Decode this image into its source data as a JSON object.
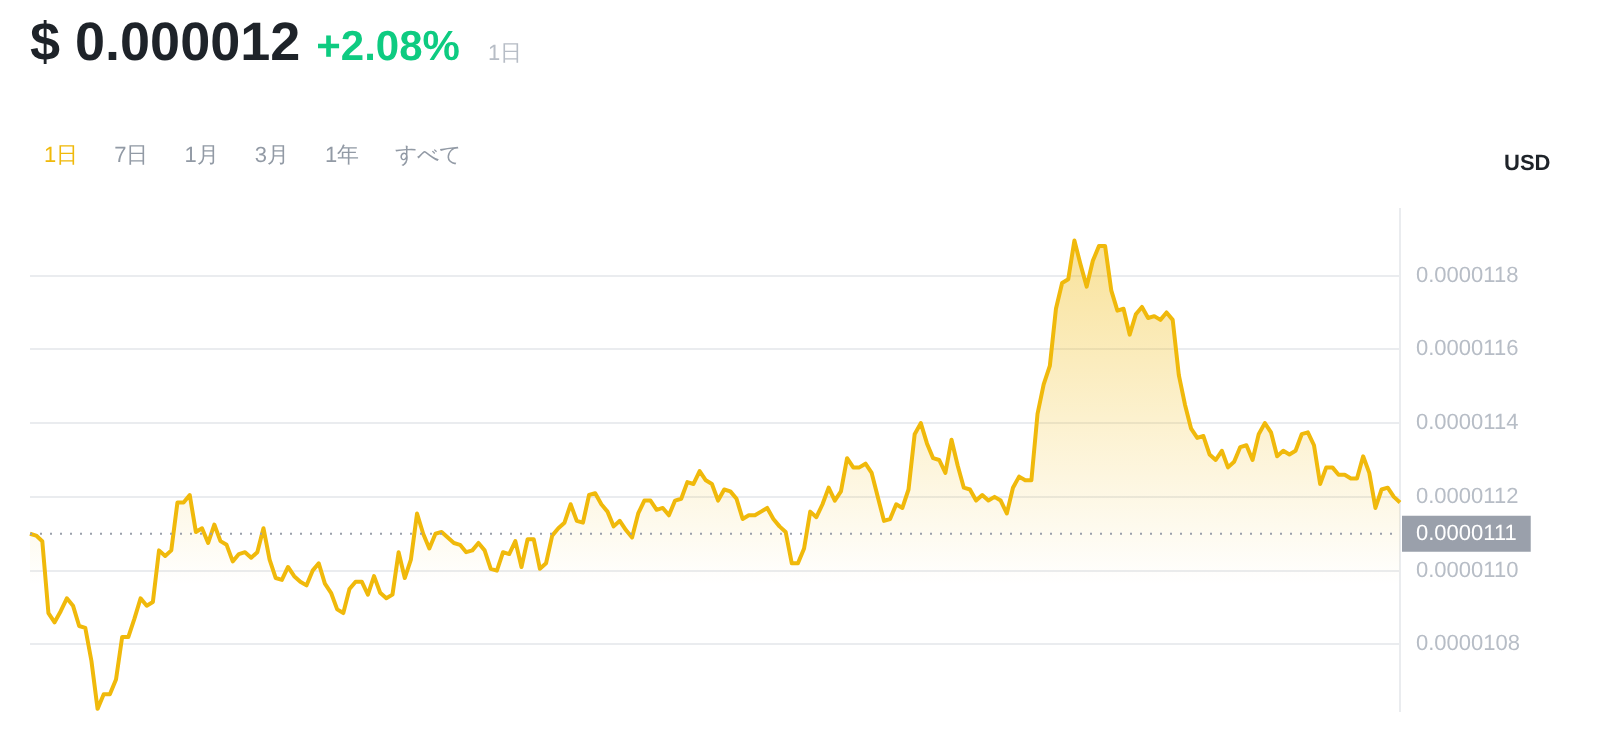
{
  "chart_data": {
    "type": "area",
    "title": "$ 0.000012",
    "subtitle": "+2.08%",
    "ylabel": "USD",
    "annotations": [
      "1日",
      "1日",
      "7日",
      "1月",
      "3月",
      "1年",
      "すべて"
    ],
    "categories": [
      null,
      null,
      null,
      null,
      null,
      null,
      null,
      null,
      null,
      null,
      null,
      null,
      null,
      null,
      null,
      null,
      null,
      null,
      null,
      null,
      null,
      null,
      null,
      null,
      null,
      null,
      null,
      null,
      null,
      null,
      null,
      null,
      null,
      null,
      null,
      null,
      null,
      null,
      null,
      null,
      null,
      null,
      null,
      null,
      null,
      null,
      null,
      null,
      null,
      null,
      null,
      null,
      null,
      null,
      null,
      null,
      null,
      null,
      null,
      null,
      null,
      null,
      null,
      null,
      null,
      null,
      null,
      null,
      null,
      null,
      null,
      null,
      null,
      null,
      null,
      null,
      null,
      null,
      null,
      null,
      null,
      null,
      null,
      null,
      null,
      null,
      null,
      null,
      null,
      null,
      null,
      null,
      null,
      null,
      null,
      null,
      null,
      null,
      null,
      null,
      null,
      null,
      null,
      null,
      null,
      null,
      null,
      null,
      null,
      null,
      null,
      null,
      null,
      null,
      null,
      null,
      null,
      null,
      null,
      null,
      null,
      null,
      null,
      null,
      null,
      null,
      null,
      null,
      null,
      null,
      null,
      null,
      null,
      null,
      null,
      null,
      null,
      null,
      null,
      null,
      null,
      null,
      null,
      null,
      null,
      null,
      null,
      null,
      null,
      null,
      null,
      null,
      null,
      null,
      null,
      null,
      null,
      null,
      null,
      null,
      null,
      null,
      null,
      null,
      null,
      null,
      null,
      null,
      null,
      null,
      null,
      null,
      null,
      null,
      null,
      null,
      null,
      null,
      null,
      null,
      null,
      null,
      null,
      null,
      null,
      null,
      null,
      null,
      null,
      null,
      null,
      null,
      null,
      null,
      null,
      null,
      null,
      null,
      null,
      null,
      null,
      null,
      null,
      null,
      null,
      null,
      null,
      null,
      null,
      null,
      null,
      null,
      null,
      null,
      null,
      null,
      null,
      null,
      null,
      null,
      null,
      null,
      null,
      null
    ],
    "series": [
      {
        "color": "#f0b90b",
        "values": [
          1.11e-05,
          1.1095e-05,
          1.108e-05,
          1.0885e-05,
          1.086e-05,
          1.089e-05,
          1.0925e-05,
          1.0905e-05,
          1.085e-05,
          1.0845e-05,
          1.0755e-05,
          1.0625e-05,
          1.0665e-05,
          1.0665e-05,
          1.0705e-05,
          1.082e-05,
          1.082e-05,
          1.087e-05,
          1.0925e-05,
          1.0905e-05,
          1.0915e-05,
          1.1055e-05,
          1.104e-05,
          1.1055e-05,
          1.1185e-05,
          1.1185e-05,
          1.1205e-05,
          1.1105e-05,
          1.1115e-05,
          1.1075e-05,
          1.1125e-05,
          1.108e-05,
          1.107e-05,
          1.1025e-05,
          1.1045e-05,
          1.105e-05,
          1.1035e-05,
          1.105e-05,
          1.1115e-05,
          1.103e-05,
          1.098e-05,
          1.0975e-05,
          1.101e-05,
          1.0985e-05,
          1.097e-05,
          1.096e-05,
          1.1e-05,
          1.102e-05,
          1.0965e-05,
          1.094e-05,
          1.0895e-05,
          1.0885e-05,
          1.095e-05,
          1.097e-05,
          1.097e-05,
          1.0935e-05,
          1.0985e-05,
          1.094e-05,
          1.0925e-05,
          1.0935e-05,
          1.105e-05,
          1.098e-05,
          1.103e-05,
          1.1155e-05,
          1.11e-05,
          1.106e-05,
          1.11e-05,
          1.1105e-05,
          1.109e-05,
          1.1075e-05,
          1.107e-05,
          1.105e-05,
          1.1055e-05,
          1.1075e-05,
          1.1055e-05,
          1.1005e-05,
          1.1e-05,
          1.105e-05,
          1.1045e-05,
          1.108e-05,
          1.101e-05,
          1.1085e-05,
          1.1085e-05,
          1.1005e-05,
          1.102e-05,
          1.1095e-05,
          1.1115e-05,
          1.113e-05,
          1.118e-05,
          1.1135e-05,
          1.113e-05,
          1.1205e-05,
          1.121e-05,
          1.118e-05,
          1.116e-05,
          1.112e-05,
          1.1135e-05,
          1.111e-05,
          1.109e-05,
          1.1155e-05,
          1.119e-05,
          1.119e-05,
          1.1165e-05,
          1.117e-05,
          1.115e-05,
          1.119e-05,
          1.1195e-05,
          1.124e-05,
          1.1235e-05,
          1.127e-05,
          1.1245e-05,
          1.1235e-05,
          1.119e-05,
          1.122e-05,
          1.1215e-05,
          1.1195e-05,
          1.114e-05,
          1.115e-05,
          1.115e-05,
          1.116e-05,
          1.117e-05,
          1.114e-05,
          1.112e-05,
          1.1105e-05,
          1.102e-05,
          1.102e-05,
          1.106e-05,
          1.116e-05,
          1.1145e-05,
          1.118e-05,
          1.1225e-05,
          1.119e-05,
          1.1215e-05,
          1.1305e-05,
          1.128e-05,
          1.128e-05,
          1.129e-05,
          1.1265e-05,
          1.12e-05,
          1.1135e-05,
          1.114e-05,
          1.118e-05,
          1.117e-05,
          1.122e-05,
          1.137e-05,
          1.14e-05,
          1.1345e-05,
          1.1305e-05,
          1.13e-05,
          1.1265e-05,
          1.1355e-05,
          1.1285e-05,
          1.1225e-05,
          1.122e-05,
          1.119e-05,
          1.1205e-05,
          1.119e-05,
          1.12e-05,
          1.119e-05,
          1.1155e-05,
          1.1225e-05,
          1.1255e-05,
          1.1245e-05,
          1.1245e-05,
          1.1425e-05,
          1.1505e-05,
          1.1555e-05,
          1.171e-05,
          1.178e-05,
          1.179e-05,
          1.1895e-05,
          1.183e-05,
          1.177e-05,
          1.184e-05,
          1.188e-05,
          1.188e-05,
          1.176e-05,
          1.1705e-05,
          1.171e-05,
          1.164e-05,
          1.1695e-05,
          1.1715e-05,
          1.1685e-05,
          1.169e-05,
          1.168e-05,
          1.17e-05,
          1.168e-05,
          1.153e-05,
          1.145e-05,
          1.1385e-05,
          1.136e-05,
          1.1365e-05,
          1.1315e-05,
          1.13e-05,
          1.1325e-05,
          1.128e-05,
          1.1295e-05,
          1.1335e-05,
          1.134e-05,
          1.13e-05,
          1.137e-05,
          1.14e-05,
          1.1375e-05,
          1.131e-05,
          1.1325e-05,
          1.1315e-05,
          1.1325e-05,
          1.137e-05,
          1.1375e-05,
          1.134e-05,
          1.1235e-05,
          1.128e-05,
          1.128e-05,
          1.126e-05,
          1.126e-05,
          1.125e-05,
          1.125e-05,
          1.131e-05,
          1.1265e-05,
          1.117e-05,
          1.122e-05,
          1.1225e-05,
          1.12e-05,
          1.1185e-05
        ]
      }
    ],
    "ylim": [
      1.062e-05,
      1.198e-05
    ],
    "yticks": [
      {
        "value": 1.08e-05,
        "label": "0.0000108"
      },
      {
        "value": 1.1e-05,
        "label": "0.0000110"
      },
      {
        "value": 1.12e-05,
        "label": "0.0000112"
      },
      {
        "value": 1.14e-05,
        "label": "0.0000114"
      },
      {
        "value": 1.16e-05,
        "label": "0.0000116"
      },
      {
        "value": 1.18e-05,
        "label": "0.0000118"
      }
    ],
    "tick_labels": "y",
    "ref_lines": [
      {
        "axis": "y",
        "value": 1.11e-05,
        "label": "0.0000111",
        "color": "#9aa0ab",
        "line_style": "dotted"
      }
    ],
    "grid": "y",
    "legend": false,
    "marker": "none",
    "line_style": "solid"
  }
}
